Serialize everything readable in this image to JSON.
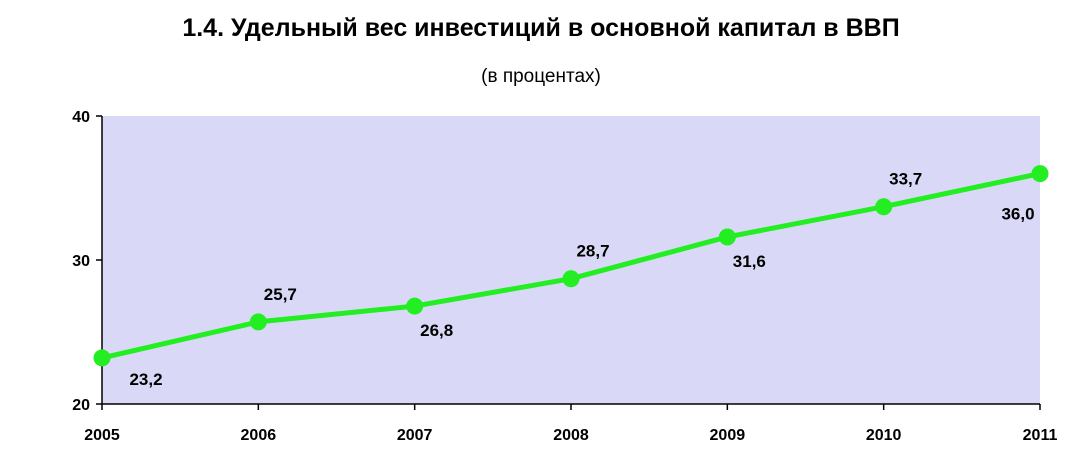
{
  "chart_data": {
    "type": "line",
    "title": "1.4. Удельный вес инвестиций в основной капитал в ВВП",
    "subtitle": "(в процентах)",
    "xlabel": "",
    "ylabel": "",
    "x": [
      "2005",
      "2006",
      "2007",
      "2008",
      "2009",
      "2010",
      "2011"
    ],
    "series": [
      {
        "values": [
          23.2,
          25.7,
          26.8,
          28.7,
          31.6,
          33.7,
          36.0
        ],
        "labels": [
          "23,2",
          "25,7",
          "26,8",
          "28,7",
          "31,6",
          "33,7",
          "36,0"
        ],
        "label_positions": [
          "below",
          "above",
          "below",
          "above",
          "below",
          "above",
          "below"
        ],
        "color": "#22ee22"
      }
    ],
    "ylim": [
      20,
      40
    ],
    "yticks": [
      "20",
      "30",
      "40"
    ],
    "grid": false,
    "legend": "none",
    "plot_background": "#d9d9f7",
    "axis_color": "#000000"
  }
}
